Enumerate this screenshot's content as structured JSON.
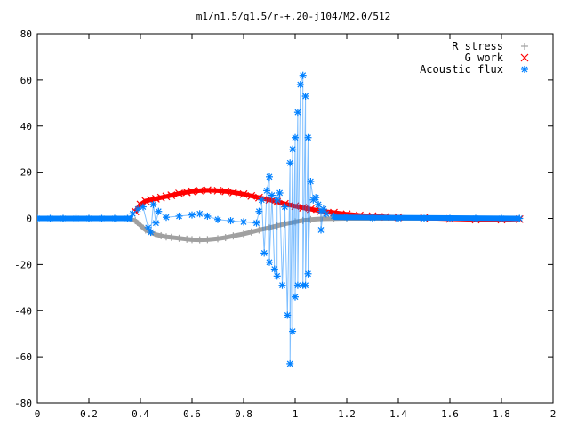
{
  "chart_data": {
    "type": "scatter",
    "title": "m1/n1.5/q1.5/r-+.20-j104/M2.0/512",
    "xlabel": "",
    "ylabel": "",
    "xlim": [
      0,
      2
    ],
    "ylim": [
      -80,
      80
    ],
    "x_ticks": [
      "0",
      "0.2",
      "0.4",
      "0.6",
      "0.8",
      "1",
      "1.2",
      "1.4",
      "1.6",
      "1.8",
      "2"
    ],
    "y_ticks": [
      "-80",
      "-60",
      "-40",
      "-20",
      "0",
      "20",
      "40",
      "60",
      "80"
    ],
    "grid": false,
    "legend": "top-right",
    "series": [
      {
        "name": "R stress",
        "marker": "plus",
        "color": "#a0a0a0",
        "x": [
          0,
          0.1,
          0.2,
          0.3,
          0.35,
          0.38,
          0.4,
          0.42,
          0.44,
          0.46,
          0.48,
          0.5,
          0.52,
          0.55,
          0.58,
          0.6,
          0.63,
          0.66,
          0.7,
          0.73,
          0.76,
          0.8,
          0.83,
          0.86,
          0.9,
          0.93,
          0.96,
          1.0,
          1.03,
          1.06,
          1.1,
          1.15,
          1.2,
          1.3,
          1.4,
          1.5,
          1.6,
          1.7,
          1.8,
          1.87
        ],
        "y": [
          0,
          0,
          0,
          0,
          0,
          -1,
          -3,
          -5,
          -6,
          -7,
          -7.5,
          -8,
          -8.2,
          -8.6,
          -9,
          -9.2,
          -9.3,
          -9.2,
          -8.8,
          -8.3,
          -7.6,
          -6.7,
          -5.9,
          -5,
          -4,
          -3.2,
          -2.4,
          -1.5,
          -0.9,
          -0.5,
          -0.2,
          -0.1,
          0,
          0,
          0,
          0,
          0,
          0,
          0,
          0
        ]
      },
      {
        "name": "G work",
        "marker": "cross",
        "color": "#ff0000",
        "x": [
          0.38,
          0.4,
          0.42,
          0.44,
          0.46,
          0.48,
          0.5,
          0.52,
          0.55,
          0.58,
          0.6,
          0.63,
          0.66,
          0.7,
          0.73,
          0.76,
          0.8,
          0.83,
          0.86,
          0.9,
          0.93,
          0.96,
          1.0,
          1.03,
          1.06,
          1.1,
          1.15,
          1.2,
          1.25,
          1.3,
          1.35,
          1.4,
          1.5,
          1.6,
          1.7,
          1.8,
          1.87
        ],
        "y": [
          3,
          6,
          7.5,
          8,
          8.5,
          9,
          9.5,
          10,
          10.8,
          11.3,
          11.7,
          12,
          12.2,
          12,
          11.7,
          11.2,
          10.5,
          9.7,
          9,
          8,
          7.2,
          6.3,
          5.3,
          4.6,
          4,
          3.2,
          2.5,
          1.8,
          1.3,
          1,
          0.7,
          0.5,
          0.2,
          -0.2,
          -0.5,
          -0.5,
          -0.3
        ]
      },
      {
        "name": "Acoustic flux",
        "marker": "star",
        "color": "#0080ff",
        "x": [
          0,
          0.05,
          0.1,
          0.15,
          0.2,
          0.25,
          0.3,
          0.35,
          0.37,
          0.39,
          0.41,
          0.43,
          0.44,
          0.45,
          0.46,
          0.47,
          0.5,
          0.55,
          0.6,
          0.63,
          0.66,
          0.7,
          0.75,
          0.8,
          0.85,
          0.86,
          0.87,
          0.88,
          0.89,
          0.9,
          0.9,
          0.91,
          0.92,
          0.93,
          0.93,
          0.94,
          0.95,
          0.96,
          0.97,
          0.98,
          0.98,
          0.99,
          0.99,
          1.0,
          1.0,
          1.01,
          1.01,
          1.02,
          1.03,
          1.03,
          1.04,
          1.04,
          1.05,
          1.05,
          1.06,
          1.07,
          1.08,
          1.09,
          1.1,
          1.1,
          1.11,
          1.12,
          1.15,
          1.2,
          1.3,
          1.4,
          1.5,
          1.6,
          1.7,
          1.8,
          1.87
        ],
        "y": [
          0,
          0,
          0,
          0,
          0,
          0,
          0,
          0,
          2,
          4,
          5,
          -4,
          -6,
          6,
          -2,
          3,
          0.5,
          1,
          1.5,
          2,
          1,
          -0.5,
          -1,
          -1.5,
          -2,
          3,
          8,
          -15,
          12,
          18,
          -19,
          10,
          -22,
          -25,
          8,
          11,
          -29,
          5,
          -42,
          24,
          -63,
          30,
          -49,
          35,
          -34,
          46,
          -29,
          58,
          62,
          -29,
          53,
          -29,
          35,
          -24,
          16,
          8,
          9,
          6,
          3,
          -5,
          4,
          2,
          1,
          0.5,
          0.2,
          0,
          0,
          0,
          0,
          0,
          0
        ]
      }
    ]
  }
}
